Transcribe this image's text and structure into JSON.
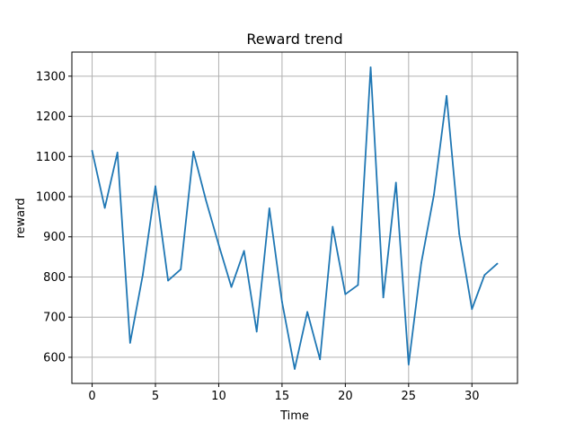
{
  "chart_data": {
    "type": "line",
    "title": "Reward trend",
    "xlabel": "Time",
    "ylabel": "reward",
    "xlim": [
      -1.6,
      33.6
    ],
    "ylim": [
      535,
      1360
    ],
    "xticks": [
      0,
      5,
      10,
      15,
      20,
      25,
      30
    ],
    "yticks": [
      600,
      700,
      800,
      900,
      1000,
      1100,
      1200,
      1300
    ],
    "grid": true,
    "series": [
      {
        "color": "#1f77b4",
        "x": [
          0,
          1,
          2,
          3,
          4,
          5,
          6,
          7,
          8,
          9,
          10,
          11,
          12,
          13,
          14,
          15,
          16,
          17,
          18,
          19,
          20,
          21,
          22,
          23,
          24,
          25,
          26,
          27,
          28,
          29,
          30,
          31,
          32
        ],
        "y": [
          1114,
          972,
          1110,
          636,
          805,
          1026,
          791,
          819,
          1112,
          990,
          880,
          775,
          865,
          664,
          971,
          738,
          571,
          713,
          595,
          925,
          757,
          780,
          1322,
          749,
          1035,
          582,
          835,
          1005,
          1251,
          907,
          720,
          805,
          833
        ]
      }
    ]
  }
}
